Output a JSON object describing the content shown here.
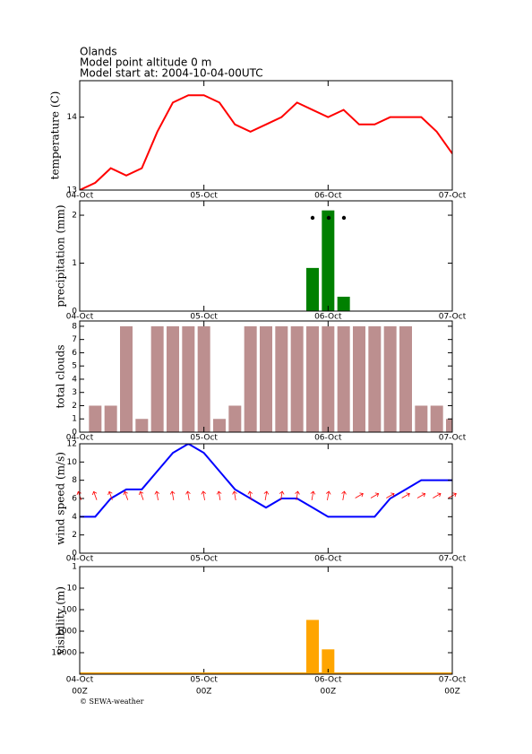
{
  "header": {
    "title": "Olands",
    "altitude": "Model point altitude  0 m",
    "start": "Model start at: 2004-10-04-00UTC"
  },
  "chart_data": [
    {
      "type": "line",
      "ylabel": "temperature (C)",
      "color": "#ff0000",
      "x": [
        0,
        3,
        6,
        9,
        12,
        15,
        18,
        21,
        24,
        27,
        30,
        33,
        36,
        39,
        42,
        45,
        48,
        51,
        54,
        57,
        60,
        63,
        66,
        69,
        72
      ],
      "values": [
        13.0,
        13.1,
        13.3,
        13.2,
        13.3,
        13.8,
        14.2,
        14.3,
        14.3,
        14.2,
        13.9,
        13.8,
        13.9,
        14.0,
        14.2,
        14.1,
        14.0,
        14.1,
        13.9,
        13.9,
        14.0,
        14.0,
        14.0,
        13.8,
        13.5
      ],
      "xlim": [
        0,
        72
      ],
      "ylim": [
        13,
        14.5
      ],
      "yticks": [
        13,
        14
      ],
      "xticks": [
        {
          "value": 0,
          "label": "04-Oct"
        },
        {
          "value": 24,
          "label": "05-Oct"
        },
        {
          "value": 48,
          "label": "06-Oct"
        },
        {
          "value": 72,
          "label": "07-Oct"
        }
      ]
    },
    {
      "type": "bar",
      "ylabel": "precipitation (mm)",
      "color": "#008000",
      "x": [
        45,
        48,
        51
      ],
      "values": [
        0.9,
        2.1,
        0.3
      ],
      "xlim": [
        0,
        72
      ],
      "ylim": [
        0,
        2.3
      ],
      "yticks": [
        0,
        1,
        2
      ],
      "xticks": [
        {
          "value": 0,
          "label": "04-Oct"
        },
        {
          "value": 24,
          "label": "05-Oct"
        },
        {
          "value": 48,
          "label": "06-Oct"
        },
        {
          "value": 72,
          "label": "07-Oct"
        }
      ]
    },
    {
      "type": "bar",
      "ylabel": "total clouds",
      "color": "#bc8f8f",
      "x": [
        3,
        6,
        9,
        12,
        15,
        18,
        21,
        24,
        27,
        30,
        33,
        36,
        39,
        42,
        45,
        48,
        51,
        54,
        57,
        60,
        63,
        66,
        69,
        72
      ],
      "values": [
        2,
        2,
        8,
        1,
        8,
        8,
        8,
        8,
        1,
        2,
        8,
        8,
        8,
        8,
        8,
        8,
        8,
        8,
        8,
        8,
        8,
        2,
        2,
        1
      ],
      "xlim": [
        0,
        72
      ],
      "ylim": [
        0,
        8.4
      ],
      "yticks": [
        0,
        1,
        2,
        3,
        4,
        5,
        6,
        7,
        8
      ],
      "xticks": [
        {
          "value": 0,
          "label": "04-Oct"
        },
        {
          "value": 24,
          "label": "05-Oct"
        },
        {
          "value": 48,
          "label": "06-Oct"
        },
        {
          "value": 72,
          "label": "07-Oct"
        }
      ]
    },
    {
      "type": "line",
      "ylabel": "wind speed (m/s)",
      "color": "#0000ff",
      "x": [
        0,
        3,
        6,
        9,
        12,
        15,
        18,
        21,
        24,
        27,
        30,
        33,
        36,
        39,
        42,
        45,
        48,
        51,
        54,
        57,
        60,
        63,
        66,
        69,
        72
      ],
      "values": [
        4,
        4,
        6,
        7,
        7,
        9,
        11,
        12,
        11,
        9,
        7,
        6,
        5,
        6,
        6,
        5,
        4,
        4,
        4,
        4,
        6,
        7,
        8,
        8,
        8
      ],
      "xlim": [
        0,
        72
      ],
      "ylim": [
        0,
        12
      ],
      "yticks": [
        0,
        2,
        4,
        6,
        8,
        10,
        12
      ],
      "xticks": [
        {
          "value": 0,
          "label": "04-Oct"
        },
        {
          "value": 24,
          "label": "05-Oct"
        },
        {
          "value": 48,
          "label": "06-Oct"
        },
        {
          "value": 72,
          "label": "07-Oct"
        }
      ]
    },
    {
      "type": "bar",
      "ylabel": "visibility (m)",
      "color": "#ffa500",
      "log_y": true,
      "y_inverted": true,
      "x": [
        45,
        48
      ],
      "values": [
        300,
        7000
      ],
      "xlim": [
        0,
        72
      ],
      "ylim": [
        1,
        100000
      ],
      "yticks": [
        1,
        10,
        100,
        1000,
        10000
      ],
      "xticks": [
        {
          "value": 0,
          "label": "04-Oct"
        },
        {
          "value": 24,
          "label": "05-Oct"
        },
        {
          "value": 48,
          "label": "06-Oct"
        },
        {
          "value": 72,
          "label": "07-Oct"
        }
      ]
    }
  ],
  "x_sublabels": [
    "00Z",
    "00Z",
    "00Z",
    "00Z"
  ],
  "footer": "© SEWA-weather"
}
